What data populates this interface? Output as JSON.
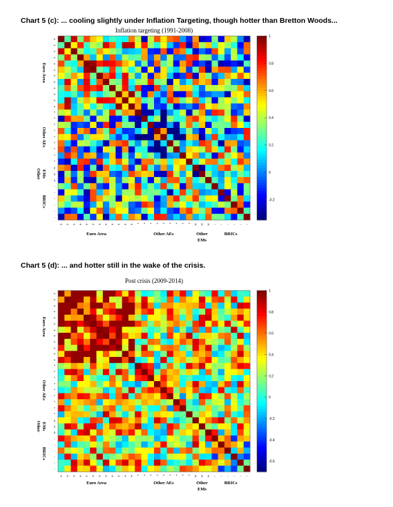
{
  "chart_data": [
    {
      "type": "heatmap",
      "heading": "Chart 5 (c): ... cooling slightly under Inflation Targeting, though hotter than Bretton Woods...",
      "title": "Inflation targeting (1991-2008)",
      "size": 30,
      "groups": [
        {
          "label": "Euro Area",
          "marker": "+",
          "start": 0,
          "count": 12
        },
        {
          "label": "Other AEs",
          "marker": "*",
          "start": 12,
          "count": 9
        },
        {
          "label": "Other EMs",
          "marker": "x",
          "start": 21,
          "count": 3
        },
        {
          "label": "BRICs",
          "marker": "-",
          "start": 24,
          "count": 6
        }
      ],
      "y_group_labels": [
        "Euro Area",
        "Other AEs",
        "Other EMs",
        "BRICs"
      ],
      "x_group_labels": [
        "Euro Area",
        "Other AEs",
        "Other EMs",
        "BRICs"
      ],
      "colorbar": {
        "min": -0.35,
        "max": 1.0,
        "ticks": [
          "1",
          "0.8",
          "0.6",
          "0.4",
          "0.2",
          "0",
          "-0.2"
        ],
        "tick_values": [
          1,
          0.8,
          0.6,
          0.4,
          0.2,
          0,
          -0.2
        ]
      },
      "within_group_mean": {
        "Euro Area": 0.55,
        "Other AEs": 0.15,
        "Other EMs": 0.1,
        "BRICs": 0.2
      },
      "cross_group_mean": 0.25,
      "seed": 17
    },
    {
      "type": "heatmap",
      "heading": "Chart 5 (d): ... and hotter still in the wake of the crisis.",
      "title": "Post crisis (2009-2014)",
      "size": 30,
      "groups": [
        {
          "label": "Euro Area",
          "marker": "+",
          "start": 0,
          "count": 12
        },
        {
          "label": "Other AEs",
          "marker": "*",
          "start": 12,
          "count": 9
        },
        {
          "label": "Other EMs",
          "marker": "x",
          "start": 21,
          "count": 3
        },
        {
          "label": "BRICs",
          "marker": "-",
          "start": 24,
          "count": 6
        }
      ],
      "y_group_labels": [
        "Euro Area",
        "Other AEs",
        "Other EMs",
        "BRICs"
      ],
      "x_group_labels": [
        "Euro Area",
        "Other AEs",
        "Other EMs",
        "BRICs"
      ],
      "colorbar": {
        "min": -0.7,
        "max": 1.0,
        "ticks": [
          "1",
          "0.8",
          "0.6",
          "0.4",
          "0.2",
          "0",
          "-0.2",
          "-0.4",
          "-0.6"
        ],
        "tick_values": [
          1,
          0.8,
          0.6,
          0.4,
          0.2,
          0,
          -0.2,
          -0.4,
          -0.6
        ]
      },
      "within_group_mean": {
        "Euro Area": 0.8,
        "Other AEs": 0.3,
        "Other EMs": 0.1,
        "BRICs": 0.1
      },
      "cross_group_mean": 0.35,
      "seed": 29
    }
  ]
}
